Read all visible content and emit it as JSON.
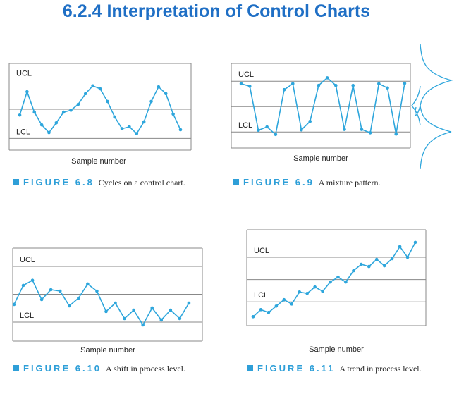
{
  "title": "6.2.4 Interpretation of Control Charts",
  "chart_data": [
    {
      "type": "line",
      "x_label": "Sample number",
      "figure_label": "FIGURE 6.8",
      "caption": "Cycles on a control chart.",
      "color": "#2ea6dc",
      "limits": [
        {
          "label": "UCL",
          "value": 3
        },
        {
          "label": "LCL",
          "value": -3
        }
      ],
      "center_line": 0,
      "xlim": [
        -0.45,
        24.45
      ],
      "ylim": [
        -4.2,
        4.7
      ],
      "x": [
        1,
        2,
        3,
        4,
        5,
        6,
        7,
        8,
        9,
        10,
        11,
        12,
        13,
        14,
        15,
        16,
        17,
        18,
        19,
        20,
        21,
        22,
        23
      ],
      "values": [
        -0.6,
        1.8,
        -0.3,
        -1.6,
        -2.4,
        -1.4,
        -0.3,
        -0.1,
        0.5,
        1.6,
        2.4,
        2.1,
        0.8,
        -0.8,
        -2.0,
        -1.8,
        -2.5,
        -1.3,
        0.8,
        2.3,
        1.6,
        -0.5,
        -2.1
      ]
    },
    {
      "type": "line",
      "x_label": "Sample number",
      "figure_label": "FIGURE 6.9",
      "caption": "A mixture pattern.",
      "color": "#2ea6dc",
      "limits": [
        {
          "label": "UCL",
          "value": 3
        },
        {
          "label": "LCL",
          "value": -3
        }
      ],
      "center_line": 0,
      "xlim": [
        -0.15,
        20.66
      ],
      "ylim": [
        -4.9,
        5.1
      ],
      "x": [
        1,
        2,
        3,
        4,
        5,
        6,
        7,
        8,
        9,
        10,
        11,
        12,
        13,
        14,
        15,
        16,
        17,
        18,
        19,
        20
      ],
      "values": [
        2.7,
        2.4,
        -2.8,
        -2.4,
        -3.3,
        2.0,
        2.7,
        -2.75,
        -1.75,
        2.5,
        3.4,
        2.5,
        -2.7,
        2.5,
        -2.7,
        -3.1,
        2.7,
        2.2,
        -3.25,
        2.75
      ]
    },
    {
      "type": "line",
      "x_label": "Sample number",
      "figure_label": "FIGURE 6.10",
      "caption": "A shift in process level.",
      "color": "#2ea6dc",
      "limits": [
        {
          "label": "UCL",
          "value": 3
        },
        {
          "label": "LCL",
          "value": -3
        }
      ],
      "center_line": 0,
      "xlim": [
        0.85,
        21.46
      ],
      "ylim": [
        -5.05,
        4.97
      ],
      "x": [
        1,
        2,
        3,
        4,
        5,
        6,
        7,
        8,
        9,
        10,
        11,
        12,
        13,
        14,
        15,
        16,
        17,
        18,
        19,
        20
      ],
      "values": [
        -1.1,
        0.95,
        1.5,
        -0.57,
        0.49,
        0.34,
        -1.25,
        -0.42,
        1.1,
        0.34,
        -1.86,
        -0.95,
        -2.62,
        -1.71,
        -3.3,
        -1.48,
        -2.77,
        -1.71,
        -2.62,
        -0.95
      ]
    },
    {
      "type": "line",
      "x_label": "Sample number",
      "figure_label": "FIGURE 6.11",
      "caption": "A trend in process level.",
      "color": "#2ea6dc",
      "limits": [
        {
          "label": "UCL",
          "value": 3
        },
        {
          "label": "LCL",
          "value": -3
        }
      ],
      "center_line": 0,
      "xlim": [
        0.18,
        23.37
      ],
      "ylim": [
        -6.2,
        6.7
      ],
      "x": [
        1,
        2,
        3,
        4,
        5,
        6,
        7,
        8,
        9,
        10,
        11,
        12,
        13,
        14,
        15,
        16,
        17,
        18,
        19,
        20,
        21,
        22
      ],
      "values": [
        -5.0,
        -4.05,
        -4.43,
        -3.57,
        -2.71,
        -3.29,
        -1.67,
        -1.86,
        -1.0,
        -1.57,
        -0.33,
        0.33,
        -0.33,
        1.19,
        2.05,
        1.76,
        2.71,
        1.86,
        2.81,
        4.43,
        3.0,
        5.0
      ]
    }
  ]
}
